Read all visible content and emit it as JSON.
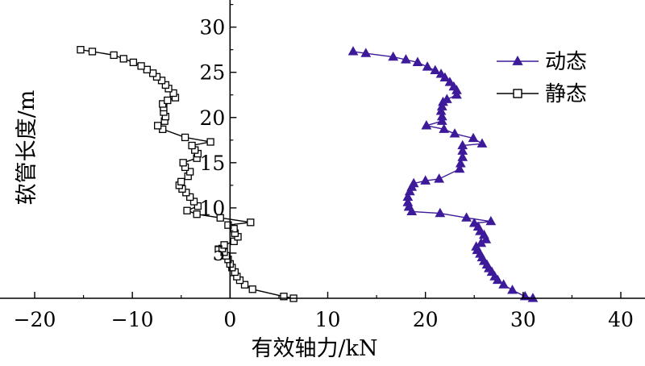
{
  "chart_data": {
    "type": "line",
    "xlabel": "有效轴力/kN",
    "ylabel": "软管长度/m",
    "xlim": [
      -20,
      40
    ],
    "ylim": [
      0,
      33
    ],
    "xticks": [
      -20,
      -10,
      0,
      10,
      20,
      30,
      40
    ],
    "yticks": [
      5,
      10,
      15,
      20,
      25,
      30
    ],
    "grid": false,
    "legend_position": "top-right",
    "series": [
      {
        "name": "动态",
        "color": "#3d1a9a",
        "marker": "triangle",
        "points": [
          [
            31.0,
            0.0
          ],
          [
            30.2,
            0.2
          ],
          [
            28.9,
            0.9
          ],
          [
            28.0,
            1.5
          ],
          [
            27.4,
            2.0
          ],
          [
            27.1,
            2.4
          ],
          [
            26.8,
            2.9
          ],
          [
            26.5,
            3.3
          ],
          [
            26.3,
            3.7
          ],
          [
            26.0,
            4.1
          ],
          [
            25.8,
            4.5
          ],
          [
            25.6,
            4.9
          ],
          [
            25.3,
            5.3
          ],
          [
            25.2,
            5.7
          ],
          [
            25.7,
            6.1
          ],
          [
            26.2,
            6.5
          ],
          [
            26.0,
            7.0
          ],
          [
            25.6,
            7.4
          ],
          [
            25.4,
            7.9
          ],
          [
            25.0,
            8.3
          ],
          [
            26.7,
            8.5
          ],
          [
            24.2,
            8.9
          ],
          [
            21.5,
            9.4
          ],
          [
            18.6,
            9.6
          ],
          [
            18.3,
            10.1
          ],
          [
            18.2,
            10.6
          ],
          [
            18.2,
            11.2
          ],
          [
            18.4,
            11.8
          ],
          [
            18.6,
            12.3
          ],
          [
            18.8,
            12.7
          ],
          [
            20.0,
            13.0
          ],
          [
            21.4,
            13.2
          ],
          [
            23.5,
            14.3
          ],
          [
            23.6,
            14.9
          ],
          [
            23.8,
            15.6
          ],
          [
            23.8,
            16.3
          ],
          [
            23.8,
            16.9
          ],
          [
            25.8,
            17.1
          ],
          [
            24.9,
            17.7
          ],
          [
            23.0,
            18.2
          ],
          [
            21.9,
            18.7
          ],
          [
            20.1,
            19.1
          ],
          [
            21.7,
            19.6
          ],
          [
            21.7,
            20.1
          ],
          [
            21.6,
            20.7
          ],
          [
            21.7,
            21.2
          ],
          [
            21.8,
            21.7
          ],
          [
            22.2,
            22.0
          ],
          [
            23.2,
            22.5
          ],
          [
            23.2,
            23.0
          ],
          [
            22.9,
            23.4
          ],
          [
            22.5,
            23.9
          ],
          [
            22.0,
            24.4
          ],
          [
            21.6,
            24.8
          ],
          [
            21.0,
            25.2
          ],
          [
            20.2,
            25.6
          ],
          [
            19.2,
            26.1
          ],
          [
            18.0,
            26.4
          ],
          [
            16.7,
            26.7
          ],
          [
            13.9,
            27.1
          ],
          [
            12.6,
            27.3
          ]
        ]
      },
      {
        "name": "静态",
        "color": "#000000",
        "marker": "square",
        "points": [
          [
            6.5,
            0.0
          ],
          [
            5.5,
            0.2
          ],
          [
            2.3,
            1.0
          ],
          [
            1.5,
            1.5
          ],
          [
            1.0,
            2.0
          ],
          [
            0.7,
            2.4
          ],
          [
            0.5,
            2.9
          ],
          [
            0.2,
            3.4
          ],
          [
            0.0,
            3.8
          ],
          [
            -0.2,
            4.3
          ],
          [
            -0.4,
            4.7
          ],
          [
            -0.6,
            5.1
          ],
          [
            -0.8,
            5.5
          ],
          [
            -0.6,
            5.9
          ],
          [
            0.4,
            6.3
          ],
          [
            0.8,
            6.8
          ],
          [
            0.5,
            7.2
          ],
          [
            0.4,
            7.7
          ],
          [
            -0.2,
            8.1
          ],
          [
            2.1,
            8.4
          ],
          [
            -1.0,
            8.9
          ],
          [
            -3.4,
            9.3
          ],
          [
            -4.4,
            9.7
          ],
          [
            -3.3,
            10.2
          ],
          [
            -3.7,
            10.7
          ],
          [
            -4.1,
            11.2
          ],
          [
            -4.5,
            11.7
          ],
          [
            -4.9,
            12.1
          ],
          [
            -5.2,
            12.5
          ],
          [
            -5.0,
            12.9
          ],
          [
            -4.3,
            13.5
          ],
          [
            -4.1,
            14.0
          ],
          [
            -4.6,
            14.5
          ],
          [
            -4.8,
            15.0
          ],
          [
            -3.4,
            15.5
          ],
          [
            -3.3,
            16.0
          ],
          [
            -3.6,
            16.4
          ],
          [
            -3.9,
            16.9
          ],
          [
            -2.0,
            17.3
          ],
          [
            -4.6,
            17.8
          ],
          [
            -6.9,
            18.7
          ],
          [
            -7.4,
            19.1
          ],
          [
            -6.7,
            19.6
          ],
          [
            -6.6,
            20.1
          ],
          [
            -6.8,
            20.6
          ],
          [
            -6.8,
            21.1
          ],
          [
            -6.9,
            21.5
          ],
          [
            -6.4,
            21.9
          ],
          [
            -5.6,
            22.2
          ],
          [
            -5.8,
            22.7
          ],
          [
            -6.3,
            23.2
          ],
          [
            -6.6,
            23.6
          ],
          [
            -7.0,
            24.1
          ],
          [
            -7.5,
            24.5
          ],
          [
            -7.9,
            24.9
          ],
          [
            -8.5,
            25.3
          ],
          [
            -9.1,
            25.7
          ],
          [
            -9.9,
            26.1
          ],
          [
            -10.9,
            26.5
          ],
          [
            -11.9,
            26.9
          ],
          [
            -14.1,
            27.3
          ],
          [
            -15.3,
            27.5
          ]
        ]
      }
    ]
  }
}
